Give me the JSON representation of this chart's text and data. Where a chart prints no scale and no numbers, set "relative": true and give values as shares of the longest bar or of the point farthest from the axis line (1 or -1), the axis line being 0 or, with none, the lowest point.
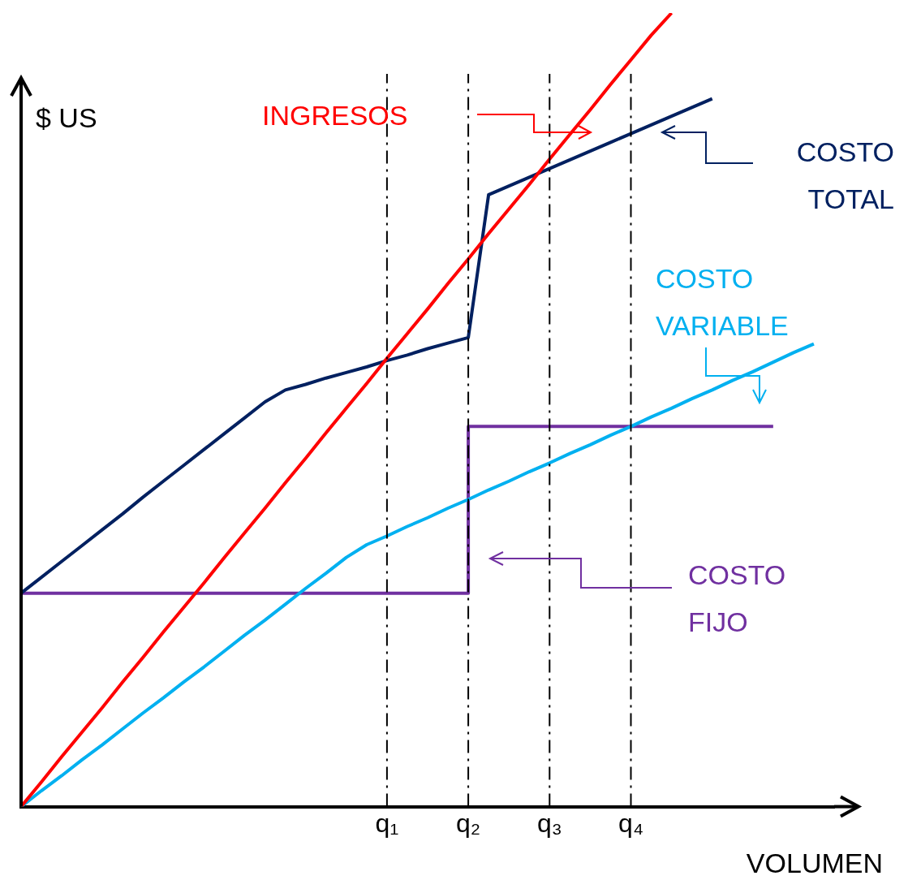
{
  "chart_data": {
    "type": "line",
    "xlabel": "VOLUMEN",
    "ylabel": "$ US",
    "relative": true,
    "marker": "none",
    "line_style": "solid",
    "categories": [
      null,
      null,
      null,
      null,
      null,
      null,
      null,
      null,
      null,
      null,
      null,
      null,
      null,
      null,
      null,
      null,
      null,
      null,
      "q₁",
      null,
      null,
      null,
      "q₂",
      null,
      null,
      null,
      "q₃",
      null,
      null,
      null,
      "q₄",
      null,
      null,
      null,
      null,
      null,
      null,
      null,
      null,
      null,
      null
    ],
    "ref_lines": [
      {
        "axis": "x",
        "value": "q₁",
        "line_style": "dashed",
        "color": "#000000"
      },
      {
        "axis": "x",
        "value": "q₂",
        "line_style": "dashed",
        "color": "#000000"
      },
      {
        "axis": "x",
        "value": "q₃",
        "line_style": "dashed",
        "color": "#000000"
      },
      {
        "axis": "x",
        "value": "q₄",
        "line_style": "dashed",
        "color": "#000000"
      }
    ],
    "series": [
      {
        "name": "INGRESOS",
        "color": "#ff0000",
        "values": [
          0,
          0.031,
          0.063,
          0.094,
          0.125,
          0.157,
          0.188,
          0.22,
          0.251,
          0.282,
          0.314,
          0.345,
          0.376,
          0.408,
          0.439,
          0.471,
          0.502,
          0.533,
          0.565,
          0.596,
          0.627,
          0.659,
          0.69,
          0.722,
          0.753,
          0.784,
          0.816,
          0.847,
          0.878,
          0.91,
          0.941,
          0.972,
          1,
          null,
          null,
          null,
          null,
          null,
          null,
          null,
          null
        ]
      },
      {
        "name": "COSTO TOTAL",
        "color": "#002060",
        "values": [
          0.269,
          0.289,
          0.309,
          0.329,
          0.349,
          0.369,
          0.39,
          0.41,
          0.43,
          0.45,
          0.47,
          0.49,
          0.51,
          0.525,
          0.532,
          0.54,
          0.547,
          0.554,
          0.562,
          0.569,
          0.577,
          0.584,
          0.591,
          0.771,
          0.782,
          0.793,
          0.804,
          0.815,
          0.826,
          0.837,
          0.848,
          0.859,
          0.87,
          0.881,
          0.892,
          null,
          null,
          null,
          null,
          null,
          null
        ]
      },
      {
        "name": "COSTO VARIABLE",
        "color": "#00b0f0",
        "values": [
          0,
          0.02,
          0.039,
          0.059,
          0.078,
          0.098,
          0.118,
          0.137,
          0.157,
          0.176,
          0.196,
          0.216,
          0.235,
          0.255,
          0.275,
          0.294,
          0.314,
          0.33,
          0.341,
          0.353,
          0.364,
          0.376,
          0.387,
          0.399,
          0.41,
          0.422,
          0.433,
          0.445,
          0.456,
          0.468,
          0.479,
          0.491,
          0.502,
          0.514,
          0.525,
          0.537,
          0.548,
          0.56,
          0.572,
          0.583,
          null
        ]
      },
      {
        "name": "COSTO FIJO",
        "type": "step",
        "color": "#7030a0",
        "values": [
          0.269,
          0.269,
          0.269,
          0.269,
          0.269,
          0.269,
          0.269,
          0.269,
          0.269,
          0.269,
          0.269,
          0.269,
          0.269,
          0.269,
          0.269,
          0.269,
          0.269,
          0.269,
          0.269,
          0.269,
          0.269,
          0.269,
          0.479,
          0.479,
          0.479,
          0.479,
          0.479,
          0.479,
          0.479,
          0.479,
          0.479,
          0.479,
          0.479,
          0.479,
          0.479,
          0.479,
          0.479,
          0.479,
          null,
          null,
          null
        ]
      }
    ]
  }
}
